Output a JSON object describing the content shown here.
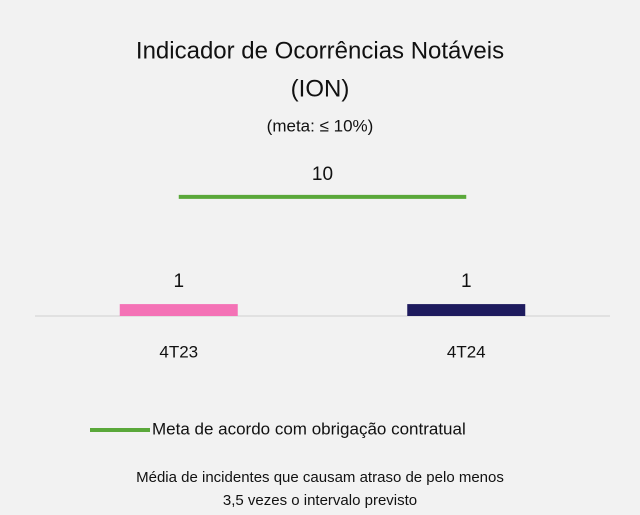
{
  "chart_data": {
    "type": "bar",
    "title": [
      "Indicador de Ocorrências Notáveis",
      "(ION)"
    ],
    "subtitle": "(meta: ≤ 10%)",
    "categories": [
      "4T23",
      "4T24"
    ],
    "values": [
      1,
      1
    ],
    "colors": [
      "#f472b6",
      "#1e1b5e"
    ],
    "target": {
      "name": "Meta de acordo com obrigação contratual",
      "color": "#5aa83a",
      "values": [
        10,
        10
      ]
    },
    "ylim": [
      0,
      11
    ],
    "note": [
      "Média de incidentes que causam atraso de pelo menos",
      "3,5 vezes o intervalo previsto"
    ]
  }
}
